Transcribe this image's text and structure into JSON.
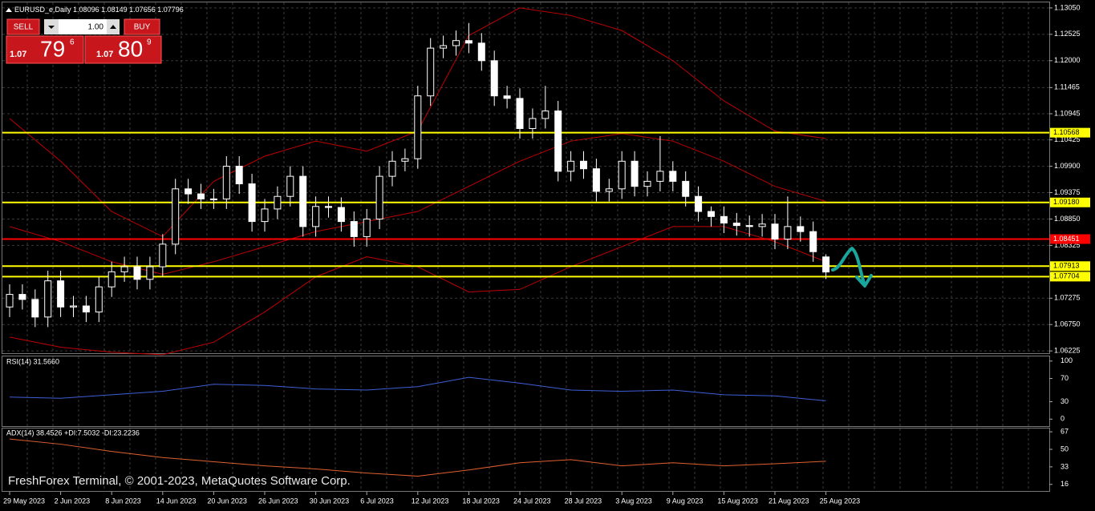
{
  "header": {
    "title": "EURUSD_e,Daily"
  },
  "trade_panel": {
    "sell": "SELL",
    "buy": "BUY",
    "lot": "1.00",
    "bid": {
      "big": "1.07",
      "pips": "79",
      "frac": "6"
    },
    "ask": {
      "big": "1.07",
      "pips": "80",
      "frac": "9"
    }
  },
  "chart_data": {
    "type": "candlestick",
    "categories": [
      "29 May 2023",
      null,
      null,
      null,
      "2 Jun 2023",
      null,
      null,
      null,
      "8 Jun 2023",
      null,
      null,
      null,
      "14 Jun 2023",
      null,
      null,
      null,
      "20 Jun 2023",
      null,
      null,
      null,
      "26 Jun 2023",
      null,
      null,
      null,
      "30 Jun 2023",
      null,
      null,
      null,
      "6 Jul 2023",
      null,
      null,
      null,
      "12 Jul 2023",
      null,
      null,
      null,
      "18 Jul 2023",
      null,
      null,
      null,
      "24 Jul 2023",
      null,
      null,
      null,
      "28 Jul 2023",
      null,
      null,
      null,
      "3 Aug 2023",
      null,
      null,
      null,
      "9 Aug 2023",
      null,
      null,
      null,
      "15 Aug 2023",
      null,
      null,
      null,
      "21 Aug 2023",
      null,
      null,
      null,
      "25 Aug 2023"
    ],
    "candles": [
      [
        1.071,
        1.0755,
        1.069,
        1.0735
      ],
      [
        1.0735,
        1.0755,
        1.0705,
        1.0725
      ],
      [
        1.0725,
        1.0745,
        1.067,
        1.069
      ],
      [
        1.069,
        1.0782,
        1.067,
        1.0762
      ],
      [
        1.0762,
        1.0782,
        1.069,
        1.071
      ],
      [
        1.071,
        1.0732,
        1.069,
        1.0712
      ],
      [
        1.0712,
        1.0732,
        1.068,
        1.07
      ],
      [
        1.07,
        1.077,
        1.068,
        1.075
      ],
      [
        1.075,
        1.08,
        1.073,
        1.078
      ],
      [
        1.078,
        1.081,
        1.076,
        1.079
      ],
      [
        1.079,
        1.081,
        1.0745,
        1.0765
      ],
      [
        1.0765,
        1.081,
        1.0745,
        1.079
      ],
      [
        1.079,
        1.0855,
        1.077,
        1.0835
      ],
      [
        1.0835,
        1.0965,
        1.0815,
        1.0945
      ],
      [
        1.0945,
        1.0965,
        1.0915,
        1.0935
      ],
      [
        1.0935,
        1.0955,
        1.0905,
        1.0925
      ],
      [
        1.0925,
        1.0945,
        1.0905,
        1.0925
      ],
      [
        1.0925,
        1.101,
        1.0905,
        1.099
      ],
      [
        1.099,
        1.101,
        1.0935,
        1.0955
      ],
      [
        1.0955,
        1.0975,
        1.086,
        1.088
      ],
      [
        1.088,
        1.0925,
        1.086,
        1.0905
      ],
      [
        1.0905,
        1.095,
        1.0885,
        1.093
      ],
      [
        1.093,
        1.099,
        1.091,
        1.097
      ],
      [
        1.097,
        1.099,
        1.085,
        1.087
      ],
      [
        1.087,
        1.093,
        1.085,
        1.091
      ],
      [
        1.091,
        1.093,
        1.0888,
        1.0908
      ],
      [
        1.0908,
        1.0928,
        1.086,
        1.088
      ],
      [
        1.088,
        1.09,
        1.083,
        1.085
      ],
      [
        1.085,
        1.0905,
        1.083,
        1.0885
      ],
      [
        1.0885,
        1.099,
        1.0865,
        1.097
      ],
      [
        1.097,
        1.102,
        1.095,
        1.1
      ],
      [
        1.1,
        1.1025,
        1.098,
        1.1005
      ],
      [
        1.1005,
        1.115,
        1.0985,
        1.113
      ],
      [
        1.113,
        1.1245,
        1.111,
        1.1225
      ],
      [
        1.1225,
        1.125,
        1.1205,
        1.123
      ],
      [
        1.123,
        1.126,
        1.121,
        1.124
      ],
      [
        1.124,
        1.1275,
        1.1215,
        1.1235
      ],
      [
        1.1235,
        1.1255,
        1.118,
        1.12
      ],
      [
        1.12,
        1.122,
        1.111,
        1.113
      ],
      [
        1.113,
        1.115,
        1.1105,
        1.1125
      ],
      [
        1.1125,
        1.1145,
        1.1045,
        1.1065
      ],
      [
        1.1065,
        1.1105,
        1.1045,
        1.1085
      ],
      [
        1.1085,
        1.115,
        1.1065,
        1.11
      ],
      [
        1.11,
        1.112,
        1.096,
        1.098
      ],
      [
        1.098,
        1.102,
        1.096,
        1.1
      ],
      [
        1.1,
        1.102,
        1.0965,
        1.0985
      ],
      [
        1.0985,
        1.1005,
        1.092,
        1.094
      ],
      [
        1.094,
        1.0965,
        1.092,
        1.0945
      ],
      [
        1.0945,
        1.102,
        1.0925,
        1.1
      ],
      [
        1.1,
        1.102,
        1.093,
        1.095
      ],
      [
        1.095,
        1.098,
        1.093,
        1.096
      ],
      [
        1.096,
        1.105,
        1.094,
        1.098
      ],
      [
        1.098,
        1.1,
        1.094,
        1.096
      ],
      [
        1.096,
        1.098,
        1.091,
        1.093
      ],
      [
        1.093,
        1.095,
        1.088,
        1.09
      ],
      [
        1.09,
        1.091,
        1.087,
        1.089
      ],
      [
        1.089,
        1.091,
        1.0857,
        1.0877
      ],
      [
        1.0877,
        1.0897,
        1.0852,
        1.0872
      ],
      [
        1.0872,
        1.0892,
        1.085,
        1.087
      ],
      [
        1.087,
        1.0895,
        1.085,
        1.0875
      ],
      [
        1.0875,
        1.0895,
        1.0825,
        1.0845
      ],
      [
        1.0845,
        1.093,
        1.0825,
        1.087
      ],
      [
        1.087,
        1.089,
        1.084,
        1.086
      ],
      [
        1.086,
        1.088,
        1.08,
        1.082
      ],
      [
        1.08096,
        1.08149,
        1.07656,
        1.07796
      ]
    ],
    "up_color": "#000000",
    "down_color": "#ffffff",
    "outline_color": "#ffffff",
    "ylim": [
      1.0618,
      1.1316
    ],
    "yticks": [
      {
        "value": 1.1305,
        "label": "1.13050"
      },
      {
        "value": 1.12525,
        "label": "1.12525"
      },
      {
        "value": 1.12,
        "label": "1.12000"
      },
      {
        "value": 1.11465,
        "label": "1.11465"
      },
      {
        "value": 1.10945,
        "label": "1.10945"
      },
      {
        "value": 1.10425,
        "label": "1.10425"
      },
      {
        "value": 1.099,
        "label": "1.09900"
      },
      {
        "value": 1.09375,
        "label": "1.09375"
      },
      {
        "value": 1.0885,
        "label": "1.08850"
      },
      {
        "value": 1.08325,
        "label": "1.08325"
      },
      {
        "value": 1.07275,
        "label": "1.07275"
      },
      {
        "value": 1.0675,
        "label": "1.06750"
      },
      {
        "value": 1.06225,
        "label": "1.06225"
      }
    ],
    "grid": true,
    "levels": [
      {
        "value": 1.10568,
        "label": "1.10568",
        "color": "#ffff00"
      },
      {
        "value": 1.0918,
        "label": "1.09180",
        "color": "#ffff00"
      },
      {
        "value": 1.08451,
        "label": "1.08451",
        "color": "#ff0000"
      },
      {
        "value": 1.07913,
        "label": "1.07913",
        "color": "#ffff00"
      },
      {
        "value": 1.07704,
        "label": "1.07704",
        "color": "#ffff00"
      }
    ],
    "band_color": "#c00000",
    "band_x": [
      0,
      4,
      8,
      12,
      16,
      20,
      24,
      28,
      32,
      36,
      40,
      44,
      48,
      52,
      56,
      60,
      64
    ],
    "bands": [
      {
        "values": [
          1.1085,
          1.1,
          1.09,
          1.085,
          1.096,
          1.101,
          1.104,
          1.102,
          1.106,
          1.125,
          1.1305,
          1.129,
          1.126,
          1.12,
          1.112,
          1.106,
          1.1045
        ]
      },
      {
        "values": [
          1.087,
          1.084,
          1.08,
          1.0775,
          1.08,
          1.083,
          1.086,
          1.088,
          1.09,
          1.095,
          1.1,
          1.104,
          1.1055,
          1.104,
          1.1,
          1.095,
          1.092
        ]
      },
      {
        "values": [
          1.065,
          1.063,
          1.062,
          1.0615,
          1.064,
          1.07,
          1.077,
          1.081,
          1.079,
          1.074,
          1.0745,
          1.079,
          1.083,
          1.087,
          1.087,
          1.084,
          1.08
        ]
      }
    ],
    "watermark": "FreshForex Terminal, © 2001-2023, MetaQuotes Software Corp."
  },
  "rsi": {
    "label": "RSI(14) 31.5660",
    "color": "#3d5fd6",
    "x": [
      0,
      4,
      8,
      12,
      16,
      20,
      24,
      28,
      32,
      36,
      40,
      44,
      48,
      52,
      56,
      60,
      64
    ],
    "values": [
      38,
      36,
      42,
      48,
      60,
      58,
      52,
      50,
      56,
      72,
      62,
      50,
      48,
      50,
      42,
      40,
      31.566
    ],
    "ylim": [
      -12,
      108
    ],
    "yticks": [
      100,
      70,
      30,
      0
    ]
  },
  "adx": {
    "label": "ADX(14) 38.4526 +DI:7.5032 -DI:23.2236",
    "color": "#e06030",
    "x": [
      0,
      4,
      8,
      12,
      16,
      20,
      24,
      28,
      32,
      36,
      40,
      44,
      48,
      52,
      56,
      60,
      64
    ],
    "values": [
      60,
      55,
      48,
      42,
      38,
      34,
      31,
      27,
      24,
      30,
      37,
      40,
      34,
      37,
      34,
      36,
      38.4526
    ],
    "ylim": [
      9.6,
      70.2
    ],
    "yticks": [
      67,
      50,
      33,
      16
    ]
  }
}
